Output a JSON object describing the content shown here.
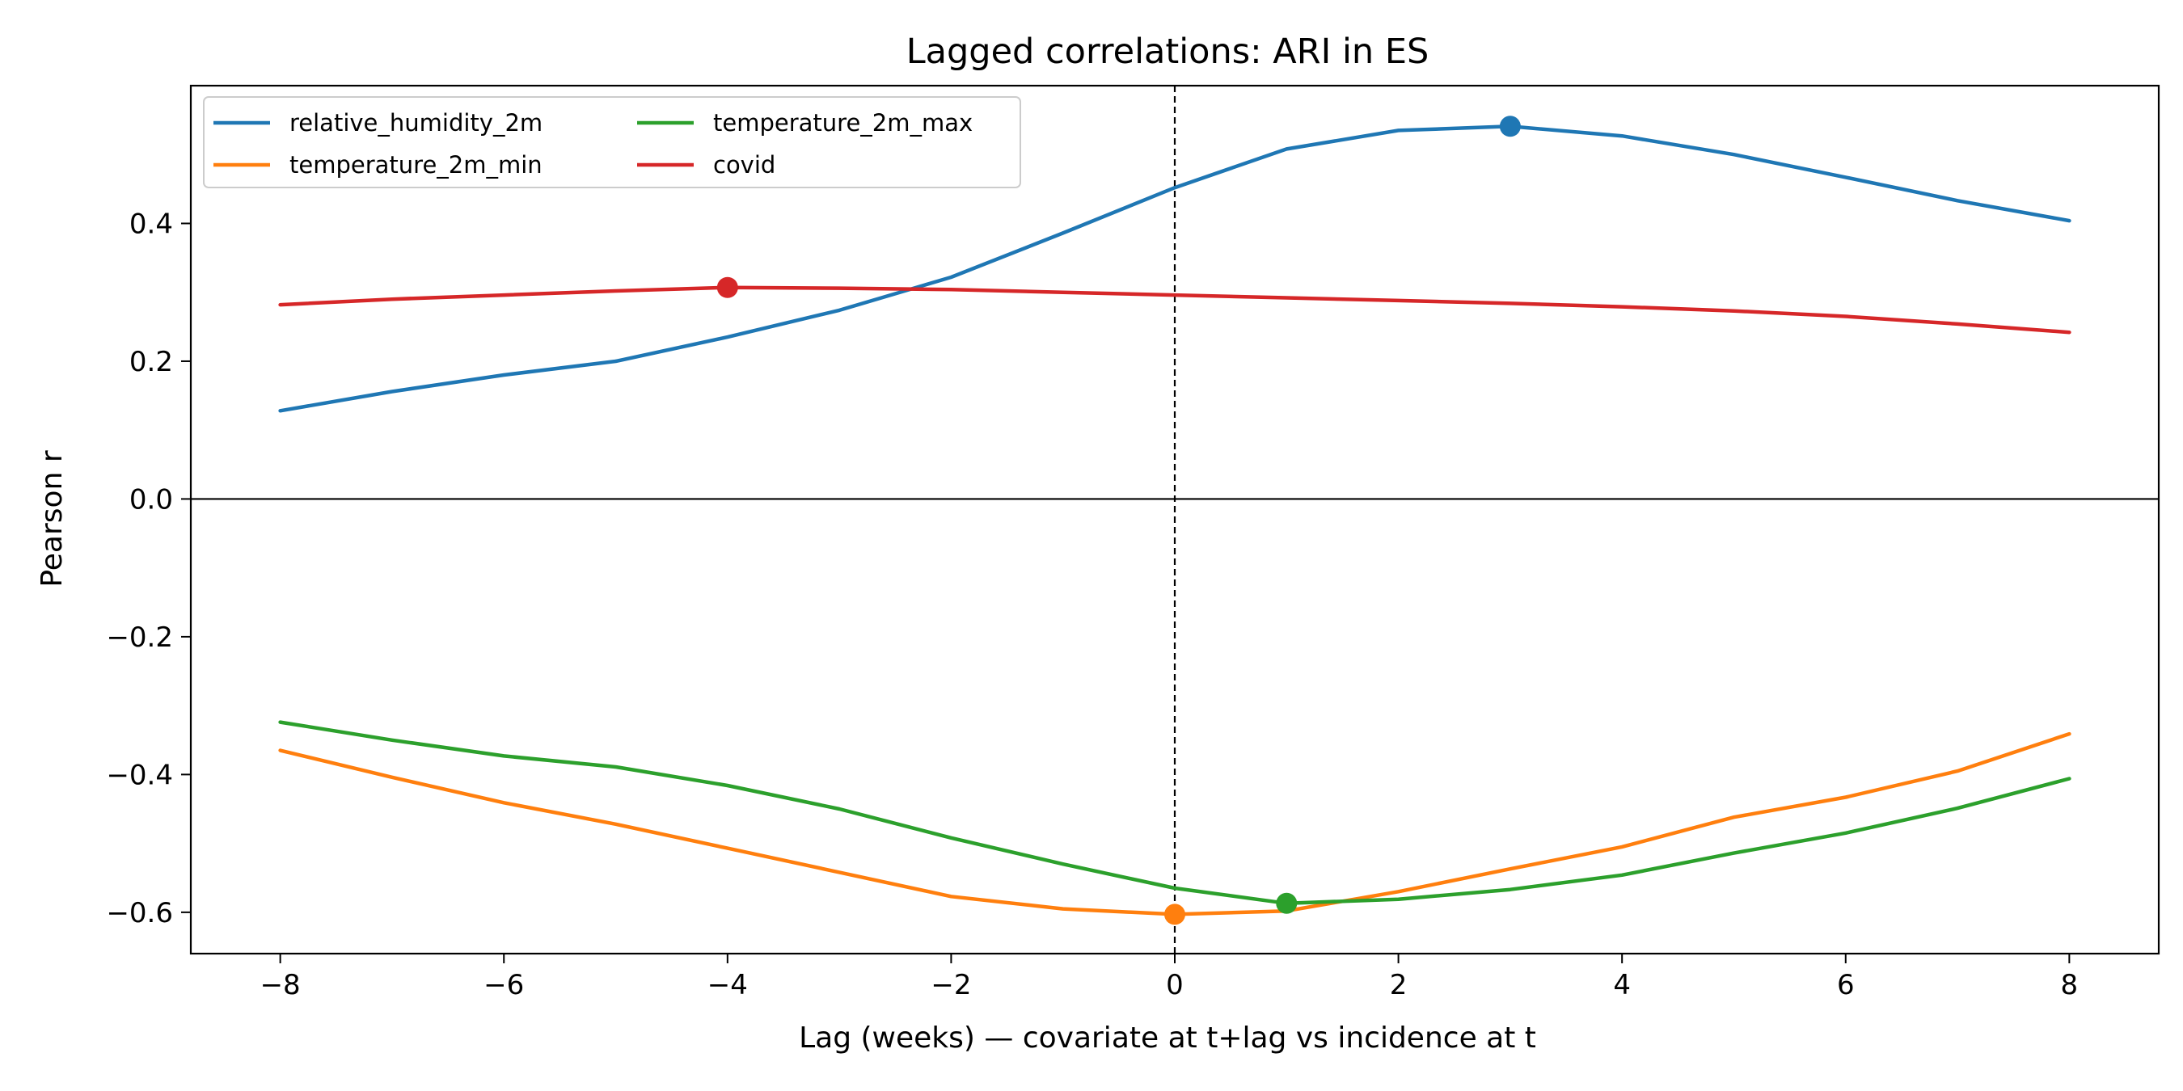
{
  "chart_data": {
    "type": "line",
    "title": "Lagged correlations: ARI in ES",
    "xlabel": "Lag (weeks) — covariate at t+lag vs incidence at t",
    "ylabel": "Pearson r",
    "xlim": [
      -8.8,
      8.8
    ],
    "ylim": [
      -0.66,
      0.6
    ],
    "x_ticks": [
      -8,
      -6,
      -4,
      -2,
      0,
      2,
      4,
      6,
      8
    ],
    "x_tick_labels": [
      "−8",
      "−6",
      "−4",
      "−2",
      "0",
      "2",
      "4",
      "6",
      "8"
    ],
    "y_ticks": [
      -0.6,
      -0.4,
      -0.2,
      0.0,
      0.2,
      0.4
    ],
    "y_tick_labels": [
      "−0.6",
      "−0.4",
      "−0.2",
      "0.0",
      "0.2",
      "0.4"
    ],
    "grid": false,
    "legend": {
      "placement": "top-left",
      "columns": 2
    },
    "reference_lines": {
      "horizontal_y": 0,
      "vertical_x_dashed": 0
    },
    "x": [
      -8,
      -7,
      -6,
      -5,
      -4,
      -3,
      -2,
      -1,
      0,
      1,
      2,
      3,
      4,
      5,
      6,
      7,
      8
    ],
    "series": [
      {
        "name": "relative_humidity_2m",
        "color": "#1f77b4",
        "values": [
          0.128,
          0.156,
          0.18,
          0.2,
          0.235,
          0.274,
          0.322,
          0.386,
          0.452,
          0.508,
          0.535,
          0.541,
          0.527,
          0.5,
          0.467,
          0.433,
          0.404
        ],
        "peak": {
          "x": 3,
          "y": 0.541
        }
      },
      {
        "name": "temperature_2m_min",
        "color": "#ff7f0e",
        "values": [
          -0.365,
          -0.404,
          -0.441,
          -0.472,
          -0.507,
          -0.542,
          -0.577,
          -0.595,
          -0.603,
          -0.598,
          -0.57,
          -0.537,
          -0.505,
          -0.462,
          -0.433,
          -0.395,
          -0.341
        ],
        "peak": {
          "x": 0,
          "y": -0.603
        }
      },
      {
        "name": "temperature_2m_max",
        "color": "#2ca02c",
        "values": [
          -0.324,
          -0.35,
          -0.373,
          -0.389,
          -0.416,
          -0.45,
          -0.492,
          -0.53,
          -0.565,
          -0.587,
          -0.581,
          -0.567,
          -0.546,
          -0.514,
          -0.485,
          -0.449,
          -0.406
        ],
        "peak": {
          "x": 1,
          "y": -0.587
        }
      },
      {
        "name": "covid",
        "color": "#d62728",
        "values": [
          0.282,
          0.29,
          0.296,
          0.302,
          0.307,
          0.306,
          0.304,
          0.3,
          0.296,
          0.292,
          0.288,
          0.284,
          0.279,
          0.273,
          0.265,
          0.254,
          0.242
        ],
        "peak": {
          "x": -4,
          "y": 0.307
        }
      }
    ]
  }
}
